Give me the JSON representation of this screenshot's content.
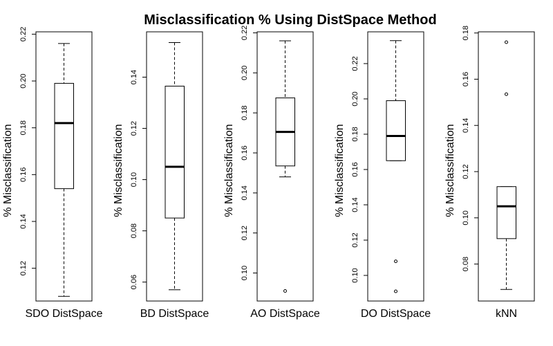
{
  "chart_data": {
    "type": "boxplot",
    "title": "Misclassification % Using DistSpace Method",
    "ylabel": "% Misclassification",
    "grid": false,
    "legend": "none",
    "panels": [
      {
        "name": "SDO DistSpace",
        "ylim": [
          0.106,
          0.221
        ],
        "ticks": [
          0.12,
          0.14,
          0.16,
          0.18,
          0.2,
          0.22
        ],
        "tick_labels": [
          "0.12",
          "0.14",
          "0.16",
          "0.18",
          "0.20",
          "0.22"
        ],
        "whisker_low": 0.108,
        "q1": 0.154,
        "median": 0.182,
        "q3": 0.199,
        "whisker_high": 0.216,
        "outliers": []
      },
      {
        "name": "BD DistSpace",
        "ylim": [
          0.0526,
          0.1577
        ],
        "ticks": [
          0.06,
          0.08,
          0.1,
          0.12,
          0.14
        ],
        "tick_labels": [
          "0.06",
          "0.08",
          "0.10",
          "0.12",
          "0.14"
        ],
        "whisker_low": 0.057,
        "q1": 0.085,
        "median": 0.105,
        "q3": 0.1365,
        "whisker_high": 0.1535,
        "outliers": []
      },
      {
        "name": "AO DistSpace",
        "ylim": [
          0.086,
          0.2205
        ],
        "ticks": [
          0.1,
          0.12,
          0.14,
          0.16,
          0.18,
          0.2,
          0.22
        ],
        "tick_labels": [
          "0.10",
          "0.12",
          "0.14",
          "0.16",
          "0.18",
          "0.20",
          "0.22"
        ],
        "whisker_low": 0.148,
        "q1": 0.1535,
        "median": 0.1705,
        "q3": 0.1875,
        "whisker_high": 0.216,
        "outliers": [
          0.091
        ]
      },
      {
        "name": "DO DistSpace",
        "ylim": [
          0.0855,
          0.238
        ],
        "ticks": [
          0.1,
          0.12,
          0.14,
          0.16,
          0.18,
          0.2,
          0.22
        ],
        "tick_labels": [
          "0.10",
          "0.12",
          "0.14",
          "0.16",
          "0.18",
          "0.20",
          "0.22"
        ],
        "whisker_low": 0.165,
        "q1": 0.165,
        "median": 0.179,
        "q3": 0.199,
        "whisker_high": 0.233,
        "outliers": [
          0.108,
          0.091
        ]
      },
      {
        "name": "kNN",
        "ylim": [
          0.064,
          0.1805
        ],
        "ticks": [
          0.08,
          0.1,
          0.12,
          0.14,
          0.16,
          0.18
        ],
        "tick_labels": [
          "0.08",
          "0.10",
          "0.12",
          "0.14",
          "0.16",
          "0.18"
        ],
        "whisker_low": 0.069,
        "q1": 0.091,
        "median": 0.105,
        "q3": 0.1135,
        "whisker_high": 0.1135,
        "outliers": [
          0.1535,
          0.176
        ]
      }
    ]
  }
}
